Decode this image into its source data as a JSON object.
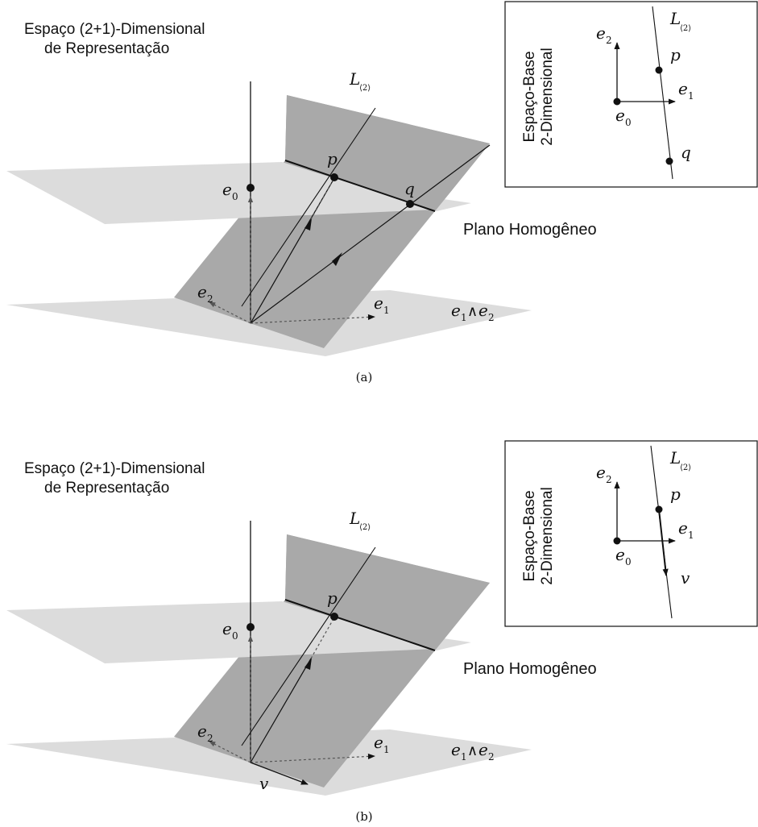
{
  "colors": {
    "light_plane": "#dcdcdc",
    "dark_plane": "#a9a9a9",
    "ink": "#111111",
    "dashed": "#555555"
  },
  "panels": [
    {
      "id": "a",
      "caption": "(a)",
      "title_line1": "Espaço (2+1)-Dimensional",
      "title_line2": "de Representação",
      "homogeneous_plane_label": "Plano Homogêneo",
      "line_label_main": "L",
      "line_label_sub": "⟨2⟩",
      "labels": {
        "e0": {
          "main": "e",
          "sub": "0"
        },
        "e1": {
          "main": "e",
          "sub": "1"
        },
        "e2": {
          "main": "e",
          "sub": "2"
        },
        "p": "p",
        "q": "q",
        "v": "",
        "wedge": {
          "a": "e",
          "a_sub": "1",
          "op": "∧",
          "b": "e",
          "b_sub": "2"
        }
      },
      "inset": {
        "title_line1": "Espaço-Base",
        "title_line2": "2-Dimensional",
        "line_label_main": "L",
        "line_label_sub": "⟨2⟩",
        "e0": {
          "main": "e",
          "sub": "0"
        },
        "e1": {
          "main": "e",
          "sub": "1"
        },
        "e2": {
          "main": "e",
          "sub": "2"
        },
        "p": "p",
        "q": "q",
        "v": ""
      }
    },
    {
      "id": "b",
      "caption": "(b)",
      "title_line1": "Espaço (2+1)-Dimensional",
      "title_line2": "de Representação",
      "homogeneous_plane_label": "Plano Homogêneo",
      "line_label_main": "L",
      "line_label_sub": "⟨2⟩",
      "labels": {
        "e0": {
          "main": "e",
          "sub": "0"
        },
        "e1": {
          "main": "e",
          "sub": "1"
        },
        "e2": {
          "main": "e",
          "sub": "2"
        },
        "p": "p",
        "q": "",
        "v": "v",
        "wedge": {
          "a": "e",
          "a_sub": "1",
          "op": "∧",
          "b": "e",
          "b_sub": "2"
        }
      },
      "inset": {
        "title_line1": "Espaço-Base",
        "title_line2": "2-Dimensional",
        "line_label_main": "L",
        "line_label_sub": "⟨2⟩",
        "e0": {
          "main": "e",
          "sub": "0"
        },
        "e1": {
          "main": "e",
          "sub": "1"
        },
        "e2": {
          "main": "e",
          "sub": "2"
        },
        "p": "p",
        "q": "",
        "v": "v"
      }
    }
  ]
}
